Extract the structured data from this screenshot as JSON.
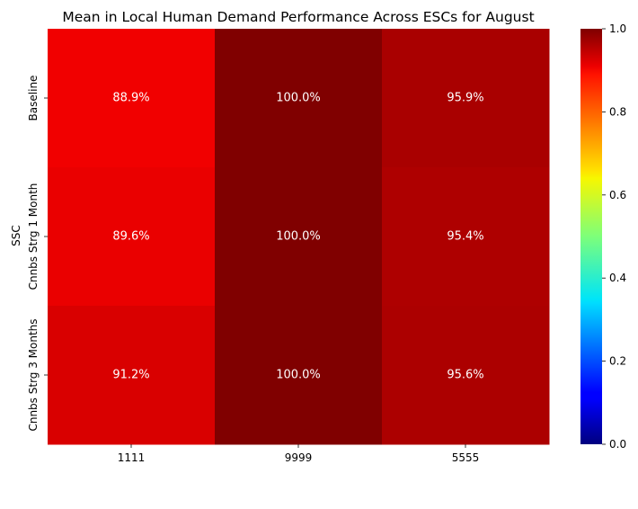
{
  "chart_data": {
    "type": "heatmap",
    "title": "Mean in Local Human Demand Performance Across ESCs for August",
    "xlabel": "",
    "ylabel": "SSC",
    "x_categories": [
      "1111",
      "9999",
      "5555"
    ],
    "y_categories": [
      "Baseline",
      "Cnnbs Strg 1 Month",
      "Cnnbs Strg 3 Months"
    ],
    "values": [
      [
        0.889,
        1.0,
        0.959
      ],
      [
        0.896,
        1.0,
        0.954
      ],
      [
        0.912,
        1.0,
        0.956
      ]
    ],
    "cell_labels": [
      [
        "88.9%",
        "100.0%",
        "95.9%"
      ],
      [
        "89.6%",
        "100.0%",
        "95.4%"
      ],
      [
        "91.2%",
        "100.0%",
        "95.6%"
      ]
    ],
    "colorscale": "jet",
    "vmin": 0.0,
    "vmax": 1.0,
    "colorbar_ticks": [
      "0.0",
      "0.2",
      "0.4",
      "0.6",
      "0.8",
      "1.0"
    ],
    "colorbar_tick_values": [
      0.0,
      0.2,
      0.4,
      0.6,
      0.8,
      1.0
    ],
    "grid": false
  }
}
